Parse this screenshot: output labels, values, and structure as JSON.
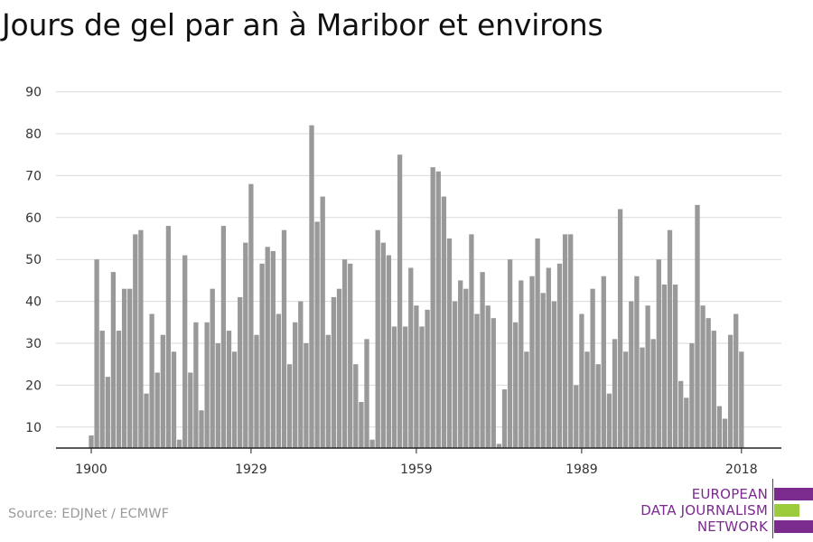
{
  "title": "Jours de gel par an à Maribor et environs",
  "source": "Source: EDJNet / ECMWF",
  "logo": {
    "lines": [
      "EUROPEAN",
      "DATA JOURNALISM",
      "NETWORK"
    ],
    "colors": {
      "purple": "#7b2a8e",
      "green": "#9ccc3c"
    }
  },
  "colors": {
    "bar": "#999999",
    "grid": "#d9d9d9",
    "axis": "#222222"
  },
  "chart_data": {
    "type": "bar",
    "title": "Jours de gel par an à Maribor et environs",
    "xlabel": "",
    "ylabel": "",
    "ylim": [
      5,
      90
    ],
    "yticks": [
      10,
      20,
      30,
      40,
      50,
      60,
      70,
      80,
      90
    ],
    "xticks": [
      1900,
      1929,
      1959,
      1989,
      2018
    ],
    "x": [
      1900,
      1901,
      1902,
      1903,
      1904,
      1905,
      1906,
      1907,
      1908,
      1909,
      1910,
      1911,
      1912,
      1913,
      1914,
      1915,
      1916,
      1917,
      1918,
      1919,
      1920,
      1921,
      1922,
      1923,
      1924,
      1925,
      1926,
      1927,
      1928,
      1929,
      1930,
      1931,
      1932,
      1933,
      1934,
      1935,
      1936,
      1937,
      1938,
      1939,
      1940,
      1941,
      1942,
      1943,
      1944,
      1945,
      1946,
      1947,
      1948,
      1949,
      1950,
      1951,
      1952,
      1953,
      1954,
      1955,
      1956,
      1957,
      1958,
      1959,
      1960,
      1961,
      1962,
      1963,
      1964,
      1965,
      1966,
      1967,
      1968,
      1969,
      1970,
      1971,
      1972,
      1973,
      1974,
      1975,
      1976,
      1977,
      1978,
      1979,
      1980,
      1981,
      1982,
      1983,
      1984,
      1985,
      1986,
      1987,
      1988,
      1989,
      1990,
      1991,
      1992,
      1993,
      1994,
      1995,
      1996,
      1997,
      1998,
      1999,
      2000,
      2001,
      2002,
      2003,
      2004,
      2005,
      2006,
      2007,
      2008,
      2009,
      2010,
      2011,
      2012,
      2013,
      2014,
      2015,
      2016,
      2017,
      2018
    ],
    "values": [
      8,
      50,
      33,
      22,
      47,
      33,
      43,
      43,
      56,
      57,
      18,
      37,
      23,
      32,
      58,
      28,
      7,
      51,
      23,
      35,
      14,
      35,
      43,
      30,
      58,
      33,
      28,
      41,
      54,
      68,
      32,
      49,
      53,
      52,
      37,
      57,
      25,
      35,
      40,
      30,
      82,
      59,
      65,
      32,
      41,
      43,
      50,
      49,
      25,
      16,
      31,
      7,
      57,
      54,
      51,
      34,
      75,
      34,
      48,
      39,
      34,
      38,
      72,
      71,
      65,
      55,
      40,
      45,
      43,
      56,
      37,
      47,
      39,
      36,
      6,
      19,
      50,
      35,
      45,
      28,
      46,
      55,
      42,
      48,
      40,
      49,
      56,
      56,
      20,
      37,
      28,
      43,
      25,
      46,
      18,
      31,
      62,
      28,
      40,
      46,
      29,
      39,
      31,
      50,
      44,
      57,
      44,
      21,
      17,
      30,
      63,
      39,
      36,
      33,
      15,
      12,
      32,
      37,
      28
    ]
  }
}
